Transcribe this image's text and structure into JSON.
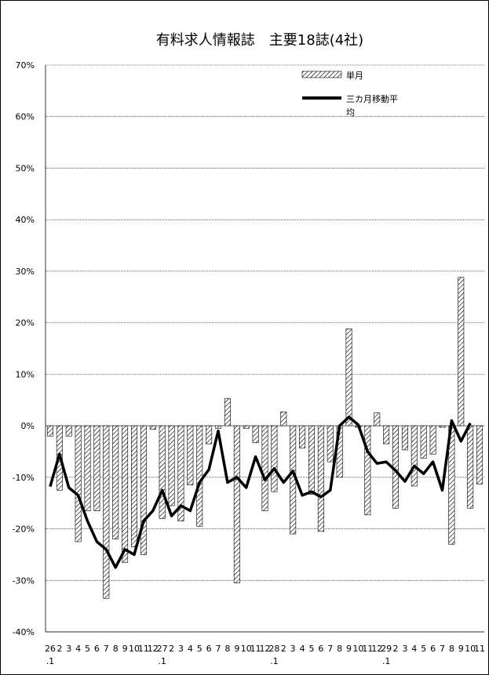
{
  "chart_data": {
    "type": "bar",
    "title": "有料求人情報誌　主要18誌(4社)",
    "xlabel": "",
    "ylabel": "",
    "ylim": [
      -40,
      70
    ],
    "yticks": [
      -40,
      -30,
      -20,
      -10,
      0,
      10,
      20,
      30,
      40,
      50,
      60,
      70
    ],
    "ytick_format": "{v}%",
    "grid": true,
    "legend_position": "top-right",
    "categories": [
      "26.1",
      "2",
      "3",
      "4",
      "5",
      "6",
      "7",
      "8",
      "9",
      "10",
      "11",
      "12",
      "27.1",
      "2",
      "3",
      "4",
      "5",
      "6",
      "7",
      "8",
      "9",
      "10",
      "11",
      "12",
      "28.1",
      "2",
      "3",
      "4",
      "5",
      "6",
      "7",
      "8",
      "9",
      "10",
      "11",
      "12",
      "29.1",
      "2",
      "3",
      "4",
      "5",
      "6",
      "7",
      "8",
      "9",
      "10",
      "11"
    ],
    "tick_labels": [
      "26",
      ".1",
      "2",
      "3",
      "4",
      "5",
      "6",
      "7",
      "8",
      "9",
      "10",
      "11",
      "12",
      "27",
      ".1",
      "2",
      "3",
      "4",
      "5",
      "6",
      "7",
      "8",
      "9",
      "10",
      "11",
      "12",
      "28",
      ".1",
      "2",
      "3",
      "4",
      "5",
      "6",
      "7",
      "8",
      "9",
      "10",
      "11",
      "12",
      "29",
      ".1",
      "2",
      "3",
      "4",
      "5",
      "6",
      "7",
      "8",
      "9",
      "10",
      "11"
    ],
    "series": [
      {
        "name": "単月",
        "kind": "bar",
        "values": [
          -2.0,
          -12.5,
          -2.0,
          -22.5,
          -16.5,
          -16.5,
          -33.5,
          -22.0,
          -26.5,
          -23.5,
          -25.0,
          -0.7,
          -18.0,
          -15.5,
          -18.5,
          -11.5,
          -19.5,
          -3.5,
          -0.5,
          5.3,
          -30.5,
          -0.5,
          -3.3,
          -16.5,
          -12.8,
          2.7,
          -21.0,
          -4.3,
          -13.3,
          -20.5,
          -7.0,
          -10.0,
          18.8,
          -0.3,
          -17.3,
          2.5,
          -3.5,
          -16.0,
          -4.7,
          -11.7,
          -6.3,
          -5.5,
          -0.3,
          -23.0,
          28.8,
          -16.0,
          -11.3
        ]
      },
      {
        "name": "三カ月移動平均",
        "kind": "line",
        "values": [
          -11.8,
          -5.5,
          -12.0,
          -13.5,
          -18.5,
          -22.5,
          -24.0,
          -27.5,
          -24.0,
          -25.0,
          -18.5,
          -16.5,
          -12.5,
          -17.5,
          -15.5,
          -16.5,
          -11.0,
          -8.5,
          -1.0,
          -11.0,
          -10.0,
          -12.0,
          -6.0,
          -10.5,
          -8.3,
          -11.0,
          -8.8,
          -13.5,
          -12.8,
          -13.8,
          -12.5,
          0.0,
          1.7,
          0.2,
          -5.0,
          -7.3,
          -7.0,
          -8.7,
          -10.8,
          -7.8,
          -9.3,
          -7.0,
          -12.5,
          1.0,
          -3.0,
          0.5,
          null
        ]
      }
    ]
  },
  "legend": {
    "bar_label": "単月",
    "line_label_1": "三カ月移動平",
    "line_label_2": "均"
  },
  "colors": {
    "bar_hatch": "#000000",
    "line": "#000000",
    "grid": "#000000"
  }
}
